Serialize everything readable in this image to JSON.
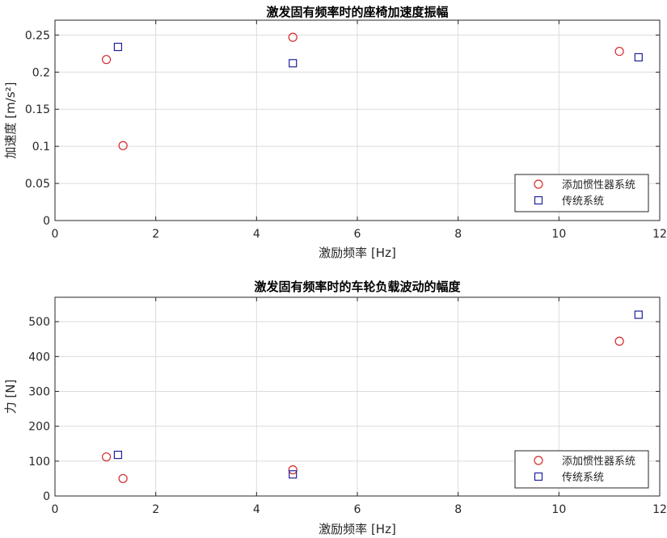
{
  "chart_data": [
    {
      "type": "scatter",
      "title": "激发固有频率时的座椅加速度振幅",
      "xlabel": "激励频率 [Hz]",
      "ylabel": "加速度 [m/s²]",
      "xlim": [
        0,
        12
      ],
      "ylim": [
        0,
        0.27
      ],
      "xticks": [
        0,
        2,
        4,
        6,
        8,
        10,
        12
      ],
      "xtick_labels": [
        "0",
        "2",
        "4",
        "6",
        "8",
        "10",
        "12"
      ],
      "yticks": [
        0,
        0.05,
        0.1,
        0.15,
        0.2,
        0.25
      ],
      "ytick_labels": [
        "0",
        "0.05",
        "0.1",
        "0.15",
        "0.2",
        "0.25"
      ],
      "grid": true,
      "legend_position": "bottom-right",
      "series": [
        {
          "name": "添加惯性器系统",
          "marker": "circle",
          "color": "#d62728",
          "points": [
            [
              1.02,
              0.217
            ],
            [
              1.35,
              0.101
            ],
            [
              4.72,
              0.247
            ],
            [
              11.2,
              0.228
            ]
          ]
        },
        {
          "name": "传统系统",
          "marker": "square",
          "color": "#1f1f9e",
          "points": [
            [
              1.25,
              0.234
            ],
            [
              4.72,
              0.212
            ],
            [
              11.58,
              0.22
            ]
          ]
        }
      ]
    },
    {
      "type": "scatter",
      "title": "激发固有频率时的车轮负载波动的幅度",
      "xlabel": "激励频率 [Hz]",
      "ylabel": "力 [N]",
      "xlim": [
        0,
        12
      ],
      "ylim": [
        0,
        570
      ],
      "xticks": [
        0,
        2,
        4,
        6,
        8,
        10,
        12
      ],
      "xtick_labels": [
        "0",
        "2",
        "4",
        "6",
        "8",
        "10",
        "12"
      ],
      "yticks": [
        0,
        100,
        200,
        300,
        400,
        500
      ],
      "ytick_labels": [
        "0",
        "100",
        "200",
        "300",
        "400",
        "500"
      ],
      "grid": true,
      "legend_position": "bottom-right",
      "series": [
        {
          "name": "添加惯性器系统",
          "marker": "circle",
          "color": "#d62728",
          "points": [
            [
              1.02,
              112
            ],
            [
              1.35,
              50
            ],
            [
              4.72,
              75
            ],
            [
              11.2,
              444
            ]
          ]
        },
        {
          "name": "传统系统",
          "marker": "square",
          "color": "#1f1f9e",
          "points": [
            [
              1.25,
              118
            ],
            [
              4.72,
              62
            ],
            [
              11.58,
              520
            ]
          ]
        }
      ]
    }
  ]
}
